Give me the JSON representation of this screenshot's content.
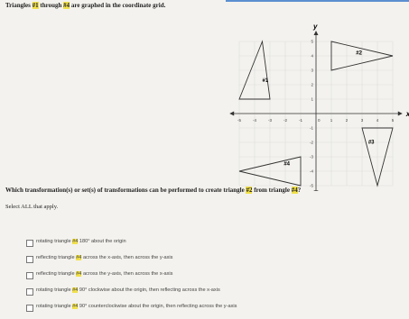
{
  "header": {
    "title_parts": [
      "Triangles ",
      "#1",
      " through ",
      "#4",
      " are graphed in the coordinate grid."
    ]
  },
  "grid": {
    "x_label": "x",
    "y_label": "y",
    "ticks": [
      -5,
      -4,
      -3,
      -2,
      -1,
      1,
      2,
      3,
      4,
      5
    ],
    "origin": "0",
    "triangles": [
      "#1",
      "#2",
      "#3",
      "#4"
    ]
  },
  "question": {
    "parts": [
      "Which transformation(s) or set(s) of transformations can be performed to create triangle ",
      "#2",
      " from triangle ",
      "#4",
      "?"
    ],
    "instruction": "Select ALL that apply."
  },
  "options": [
    [
      "rotating triangle ",
      "#4",
      " 180° about the origin"
    ],
    [
      "reflecting triangle ",
      "#4",
      " across the x-axis, then across the y-axis"
    ],
    [
      "reflecting triangle ",
      "#4",
      " across the y-axis, then across the x-axis"
    ],
    [
      "rotating triangle ",
      "#4",
      " 90° clockwise about the origin, then reflecting across the x-axis"
    ],
    [
      "rotating triangle ",
      "#4",
      " 90° counterclockwise about the origin, then reflecting across the y-axis"
    ]
  ]
}
